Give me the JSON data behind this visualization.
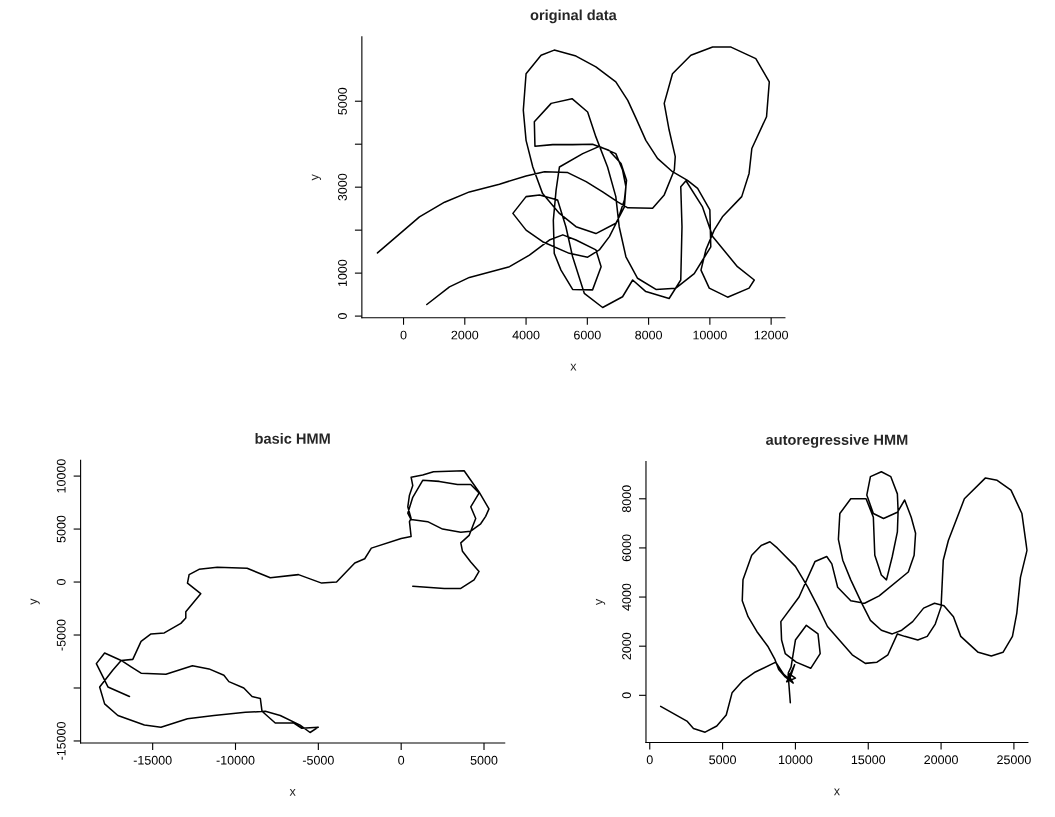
{
  "chart_data": [
    {
      "type": "line",
      "title": "original data",
      "xlabel": "x",
      "ylabel": "y",
      "xlim": [
        -1360,
        12450
      ],
      "ylim": [
        -40,
        6500
      ],
      "xticks": [
        0,
        2000,
        4000,
        6000,
        8000,
        10000,
        12000
      ],
      "yticks": [
        0,
        1000,
        {
          "value": 2000,
          "label": null
        },
        3000,
        {
          "value": 4000,
          "label": null
        },
        5000
      ],
      "series": [
        {
          "color": "#000000",
          "x": [
            760,
            1500,
            2150,
            3460,
            4110,
            4760,
            5200,
            5630,
            6280,
            6450,
            6170,
            5520,
            5140,
            4920,
            4890,
            4980,
            5090,
            5850,
            6390,
            6930,
            7150,
            7260,
            7210,
            6930,
            6280,
            5630,
            5090,
            4540,
            4220,
            4000,
            3910,
            4000,
            4490,
            4920,
            5630,
            6280,
            6930,
            7320,
            7590,
            7910,
            8290,
            8780,
            9270,
            9600,
            10000,
            10030,
            9760,
            9490,
            8890,
            8240,
            7640,
            7260,
            7040,
            6930,
            6660,
            6280,
            6010,
            5500,
            4820,
            4270,
            4290,
            4870,
            5520,
            6170,
            6700,
            7100,
            7280,
            7210,
            6990,
            6720,
            6390,
            6010,
            5410,
            4540,
            4000,
            3570,
            4000,
            4440,
            5030,
            5300,
            5520,
            5900,
            6500,
            7150,
            7480,
            7910,
            8670,
            9050,
            9090,
            9050,
            9220,
            9760,
            10090,
            10900,
            11450,
            11280,
            10580,
            9980,
            9710,
            9870,
            10140,
            10410,
            11040,
            11280,
            11370,
            11850,
            11940,
            11500,
            10690,
            10090,
            9380,
            8780,
            8510,
            8670,
            8870,
            8840,
            8510,
            8130,
            7320,
            6990,
            6500,
            5960,
            5360,
            4600,
            4000,
            3130,
            2150,
            1340,
            520,
            -850
          ],
          "values": [
            270,
            680,
            900,
            1150,
            1420,
            1770,
            1890,
            1770,
            1540,
            1150,
            610,
            620,
            1070,
            1460,
            2230,
            2930,
            3470,
            3780,
            3950,
            3780,
            3400,
            3010,
            2540,
            2160,
            1920,
            2080,
            2390,
            2850,
            3470,
            4090,
            4790,
            5640,
            6070,
            6190,
            6050,
            5800,
            5450,
            5020,
            4600,
            4090,
            3670,
            3360,
            3160,
            2970,
            2470,
            1610,
            1300,
            990,
            650,
            620,
            880,
            1380,
            2080,
            2780,
            3470,
            4170,
            4750,
            5060,
            4950,
            4520,
            3950,
            3990,
            3990,
            4000,
            3860,
            3550,
            3160,
            2700,
            2230,
            1850,
            1540,
            1370,
            1460,
            1730,
            2000,
            2390,
            2780,
            2820,
            2700,
            2080,
            1380,
            530,
            200,
            450,
            840,
            570,
            410,
            840,
            2080,
            3010,
            3150,
            2540,
            1850,
            1150,
            840,
            650,
            440,
            650,
            1070,
            1540,
            2000,
            2310,
            2780,
            3320,
            3900,
            4640,
            5450,
            5990,
            6260,
            6260,
            6070,
            5640,
            4950,
            4330,
            3710,
            3400,
            2820,
            2510,
            2520,
            2660,
            2890,
            3130,
            3340,
            3360,
            3260,
            3070,
            2890,
            2650,
            2310,
            1470
          ]
        }
      ]
    },
    {
      "type": "line",
      "title": "basic HMM",
      "xlabel": "x",
      "ylabel": "y",
      "xlim": [
        -19350,
        6250
      ],
      "ylim": [
        -15190,
        11490
      ],
      "xticks": [
        -15000,
        -10000,
        -5000,
        0,
        5000
      ],
      "yticks": [
        -15000,
        {
          "value": -10000,
          "label": null
        },
        -5000,
        0,
        5000,
        10000
      ],
      "series": [
        {
          "color": "#000000",
          "x": [
            -16400,
            -17700,
            -18400,
            -17900,
            -16900,
            -16300,
            -15700,
            -14200,
            -12600,
            -11600,
            -10700,
            -10400,
            -9500,
            -9000,
            -8500,
            -8400,
            -7600,
            -6500,
            -6000,
            -5000,
            -5500,
            -6100,
            -7300,
            -8200,
            -9400,
            -11300,
            -12900,
            -14500,
            -15500,
            -17100,
            -17900,
            -18200,
            -17800,
            -17400,
            -16900,
            -16200,
            -15700,
            -15100,
            -14300,
            -13300,
            -13000,
            -13000,
            -12100,
            -12900,
            -12800,
            -12200,
            -11100,
            -9300,
            -7900,
            -6200,
            -4800,
            -3900,
            -2800,
            -2200,
            -1800,
            0,
            600,
            500,
            600,
            400,
            500,
            700,
            600,
            1300,
            1950,
            3800,
            4700,
            5300,
            5100,
            4800,
            4200,
            3600,
            2500,
            1600,
            600,
            400,
            700,
            1300,
            2300,
            3400,
            4200,
            4700,
            4200,
            4500,
            4100,
            3600,
            3700,
            4200,
            4700,
            4400,
            3600,
            2600,
            700
          ],
          "values": [
            -10800,
            -9900,
            -7700,
            -6700,
            -7400,
            -8000,
            -8600,
            -8700,
            -7900,
            -8200,
            -8800,
            -9400,
            -10000,
            -10800,
            -11000,
            -12200,
            -13300,
            -13300,
            -13800,
            -13700,
            -14200,
            -13500,
            -12600,
            -12200,
            -12300,
            -12600,
            -12900,
            -13700,
            -13500,
            -12600,
            -11500,
            -9900,
            -9100,
            -8300,
            -7400,
            -7300,
            -5600,
            -4900,
            -4800,
            -3900,
            -3400,
            -2800,
            -1100,
            -100,
            700,
            1200,
            1400,
            1300,
            400,
            700,
            -100,
            0,
            1800,
            2200,
            3200,
            4100,
            4300,
            5700,
            6000,
            7100,
            8200,
            9100,
            9900,
            10100,
            10400,
            10500,
            8500,
            6900,
            6200,
            5500,
            4800,
            4700,
            5000,
            5700,
            5900,
            6500,
            8000,
            9600,
            9500,
            9200,
            9200,
            8400,
            7100,
            6000,
            4400,
            3700,
            2900,
            1900,
            1000,
            200,
            -600,
            -600,
            -400
          ]
        }
      ]
    },
    {
      "type": "line",
      "title": "autoregressive HMM",
      "xlabel": "x",
      "ylabel": "y",
      "xlim": [
        -260,
        25960
      ],
      "ylim": [
        -1920,
        9520
      ],
      "xticks": [
        0,
        5000,
        10000,
        15000,
        20000,
        25000
      ],
      "yticks": [
        0,
        2000,
        4000,
        6000,
        8000
      ],
      "series": [
        {
          "color": "#000000",
          "x": [
            750,
            2550,
            3000,
            3800,
            4600,
            5250,
            5650,
            6400,
            7250,
            8650,
            9200,
            9600,
            9950,
            9400,
            10000,
            9500,
            9700,
            10000,
            10750,
            11550,
            11700,
            11050,
            10050,
            9300,
            9050,
            9000,
            10250,
            11350,
            12150,
            12500,
            12900,
            13800,
            14750,
            15750,
            17750,
            18150,
            18250,
            17950,
            17500,
            17000,
            16050,
            15350,
            14900,
            15150,
            15900,
            16550,
            17000,
            17050,
            17000,
            16650,
            16250,
            15900,
            15450,
            15350,
            14850,
            13800,
            13050,
            12950,
            13250,
            13800,
            14550,
            15150,
            15900,
            16650,
            17300,
            18050,
            18800,
            19550,
            20200,
            20850,
            21350,
            22550,
            23450,
            24250,
            24900,
            25200,
            25450,
            25900,
            25550,
            24800,
            23850,
            23050,
            21600,
            20500,
            20150,
            20000,
            19600,
            19050,
            18400,
            17500,
            17000,
            16350,
            15600,
            14800,
            13900,
            12200,
            11550,
            10850,
            10000,
            8750,
            8250,
            7650,
            7000,
            6400,
            6350,
            6750,
            7350,
            8100,
            8600,
            8850,
            9300,
            9850,
            9500,
            9650
          ],
          "values": [
            -450,
            -1050,
            -1350,
            -1500,
            -1250,
            -800,
            100,
            600,
            950,
            1350,
            850,
            650,
            1250,
            550,
            700,
            900,
            1150,
            2250,
            2850,
            2500,
            1700,
            1100,
            1350,
            1700,
            2250,
            3000,
            4000,
            5450,
            5650,
            5350,
            4400,
            3850,
            3750,
            4050,
            5020,
            5700,
            6600,
            7250,
            7950,
            7450,
            7200,
            7400,
            8150,
            8900,
            9100,
            8900,
            8200,
            7500,
            6650,
            5650,
            4700,
            4900,
            5700,
            7250,
            8000,
            8000,
            7400,
            6350,
            5500,
            4700,
            3750,
            3050,
            2650,
            2500,
            2650,
            3000,
            3550,
            3750,
            3650,
            3200,
            2400,
            1750,
            1600,
            1750,
            2400,
            3350,
            4800,
            5900,
            7400,
            8350,
            8750,
            8850,
            8000,
            6300,
            5500,
            3600,
            2900,
            2400,
            2250,
            2400,
            2500,
            1650,
            1350,
            1300,
            1650,
            2800,
            3600,
            4400,
            5250,
            6000,
            6250,
            6100,
            5700,
            4700,
            3850,
            3200,
            2600,
            2000,
            1450,
            1050,
            750,
            500,
            850,
            -300
          ]
        }
      ]
    }
  ]
}
